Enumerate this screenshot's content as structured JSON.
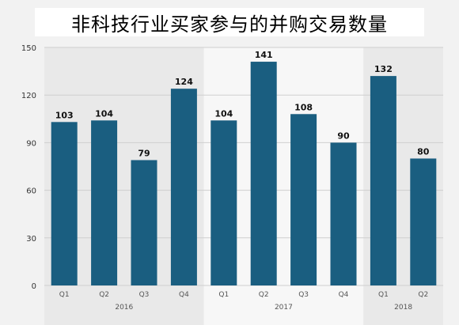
{
  "chart_data": {
    "type": "bar",
    "title": "非科技行业买家参与的并购交易数量",
    "xlabel": "",
    "ylabel": "",
    "ylim": [
      0,
      150
    ],
    "yticks": [
      0,
      30,
      60,
      90,
      120,
      150
    ],
    "grid": true,
    "categories": [
      "Q1",
      "Q2",
      "Q3",
      "Q4",
      "Q1",
      "Q2",
      "Q3",
      "Q4",
      "Q1",
      "Q2"
    ],
    "groups": [
      {
        "label": "2016",
        "count": 4
      },
      {
        "label": "2017",
        "count": 4
      },
      {
        "label": "2018",
        "count": 2
      }
    ],
    "values": [
      103,
      104,
      79,
      124,
      104,
      141,
      108,
      90,
      132,
      80
    ],
    "bar_color": "#1a5e80"
  }
}
